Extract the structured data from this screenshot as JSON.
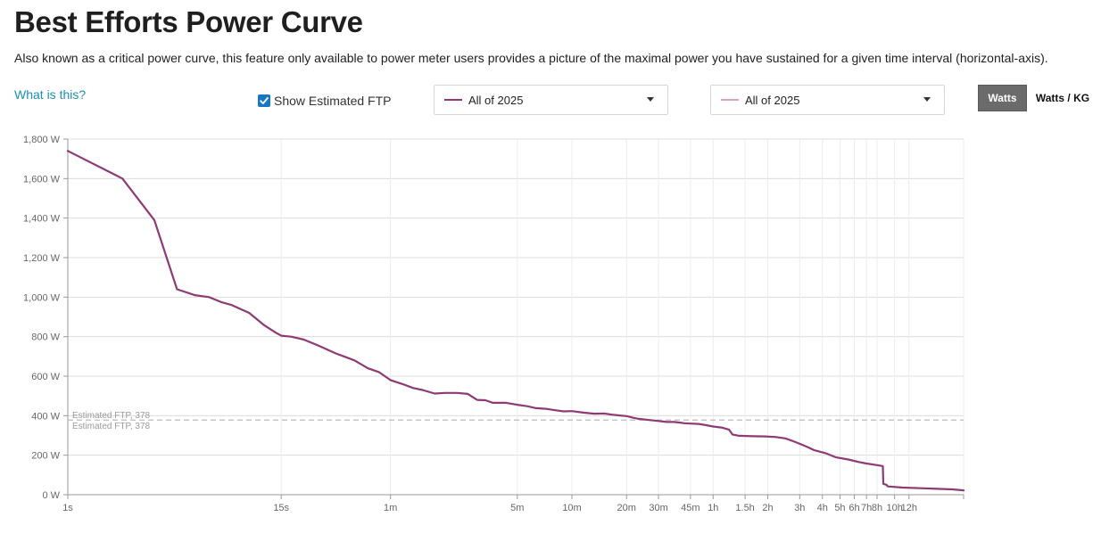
{
  "header": {
    "title": "Best Efforts Power Curve",
    "subtitle": "Also known as a critical power curve, this feature only available to power meter users provides a picture of the maximal power you have sustained for a given time interval (horizontal-axis).",
    "help_link": "What is this?"
  },
  "controls": {
    "ftp_checkbox_label": "Show Estimated FTP",
    "ftp_checked": true,
    "primary_range": {
      "label": "All of 2025",
      "color": "#8e3a74"
    },
    "compare_range": {
      "label": "All of 2025",
      "color": "#d6a4c4"
    },
    "units": {
      "watts_label": "Watts",
      "wkg_label": "Watts / KG",
      "active": "watts"
    }
  },
  "chart_data": {
    "type": "line",
    "title": "",
    "xlabel": "",
    "ylabel": "",
    "x_scale": "log",
    "x_range_seconds": [
      1,
      86400
    ],
    "ylim": [
      0,
      1800
    ],
    "y_ticks": [
      {
        "value": 0,
        "label": "0 W"
      },
      {
        "value": 200,
        "label": "200 W"
      },
      {
        "value": 400,
        "label": "400 W"
      },
      {
        "value": 600,
        "label": "600 W"
      },
      {
        "value": 800,
        "label": "800 W"
      },
      {
        "value": 1000,
        "label": "1,000 W"
      },
      {
        "value": 1200,
        "label": "1,200 W"
      },
      {
        "value": 1400,
        "label": "1,400 W"
      },
      {
        "value": 1600,
        "label": "1,600 W"
      },
      {
        "value": 1800,
        "label": "1,800 W"
      }
    ],
    "x_ticks": [
      {
        "seconds": 1,
        "label": "1s"
      },
      {
        "seconds": 15,
        "label": "15s"
      },
      {
        "seconds": 60,
        "label": "1m"
      },
      {
        "seconds": 300,
        "label": "5m"
      },
      {
        "seconds": 600,
        "label": "10m"
      },
      {
        "seconds": 1200,
        "label": "20m"
      },
      {
        "seconds": 1800,
        "label": "30m"
      },
      {
        "seconds": 2700,
        "label": "45m"
      },
      {
        "seconds": 3600,
        "label": "1h"
      },
      {
        "seconds": 5400,
        "label": "1.5h"
      },
      {
        "seconds": 7200,
        "label": "2h"
      },
      {
        "seconds": 10800,
        "label": "3h"
      },
      {
        "seconds": 14400,
        "label": "4h"
      },
      {
        "seconds": 18000,
        "label": "5h"
      },
      {
        "seconds": 21600,
        "label": "6h"
      },
      {
        "seconds": 25200,
        "label": "7h"
      },
      {
        "seconds": 28800,
        "label": "8h"
      },
      {
        "seconds": 36000,
        "label": "10h"
      },
      {
        "seconds": 43200,
        "label": "12h"
      }
    ],
    "grid": true,
    "ftp_lines": [
      {
        "value": 378,
        "label": "Estimated FTP, 378",
        "color": "#bbbbbb"
      },
      {
        "value": 378,
        "label": "Estimated FTP, 378",
        "color": "#bbbbbb"
      }
    ],
    "series": [
      {
        "color": "#8e3a74",
        "points": [
          [
            1,
            1740
          ],
          [
            2,
            1600
          ],
          [
            3,
            1390
          ],
          [
            4,
            1040
          ],
          [
            5,
            1010
          ],
          [
            6,
            1000
          ],
          [
            7,
            975
          ],
          [
            8,
            960
          ],
          [
            10,
            920
          ],
          [
            12,
            860
          ],
          [
            14,
            820
          ],
          [
            15,
            805
          ],
          [
            17,
            800
          ],
          [
            20,
            785
          ],
          [
            24,
            755
          ],
          [
            30,
            715
          ],
          [
            38,
            680
          ],
          [
            45,
            640
          ],
          [
            52,
            620
          ],
          [
            60,
            580
          ],
          [
            70,
            560
          ],
          [
            80,
            540
          ],
          [
            90,
            530
          ],
          [
            105,
            512
          ],
          [
            120,
            515
          ],
          [
            140,
            515
          ],
          [
            160,
            510
          ],
          [
            180,
            480
          ],
          [
            200,
            478
          ],
          [
            220,
            465
          ],
          [
            260,
            465
          ],
          [
            300,
            455
          ],
          [
            340,
            448
          ],
          [
            380,
            438
          ],
          [
            430,
            435
          ],
          [
            480,
            428
          ],
          [
            540,
            422
          ],
          [
            600,
            423
          ],
          [
            700,
            415
          ],
          [
            800,
            410
          ],
          [
            900,
            411
          ],
          [
            1000,
            405
          ],
          [
            1100,
            401
          ],
          [
            1200,
            398
          ],
          [
            1300,
            390
          ],
          [
            1400,
            384
          ],
          [
            1600,
            378
          ],
          [
            1800,
            373
          ],
          [
            2000,
            368
          ],
          [
            2200,
            368
          ],
          [
            2500,
            362
          ],
          [
            2700,
            360
          ],
          [
            3000,
            358
          ],
          [
            3300,
            352
          ],
          [
            3600,
            345
          ],
          [
            4000,
            340
          ],
          [
            4400,
            330
          ],
          [
            4600,
            305
          ],
          [
            5000,
            298
          ],
          [
            6000,
            296
          ],
          [
            7000,
            295
          ],
          [
            8000,
            292
          ],
          [
            9000,
            285
          ],
          [
            10000,
            270
          ],
          [
            11000,
            255
          ],
          [
            12000,
            240
          ],
          [
            13000,
            225
          ],
          [
            15000,
            210
          ],
          [
            17000,
            190
          ],
          [
            20000,
            178
          ],
          [
            23000,
            165
          ],
          [
            25200,
            158
          ],
          [
            28800,
            150
          ],
          [
            31000,
            145
          ],
          [
            31200,
            55
          ],
          [
            32500,
            50
          ],
          [
            33000,
            42
          ],
          [
            40000,
            36
          ],
          [
            50000,
            33
          ],
          [
            62000,
            30
          ],
          [
            75000,
            27
          ],
          [
            86400,
            22
          ]
        ]
      }
    ]
  }
}
